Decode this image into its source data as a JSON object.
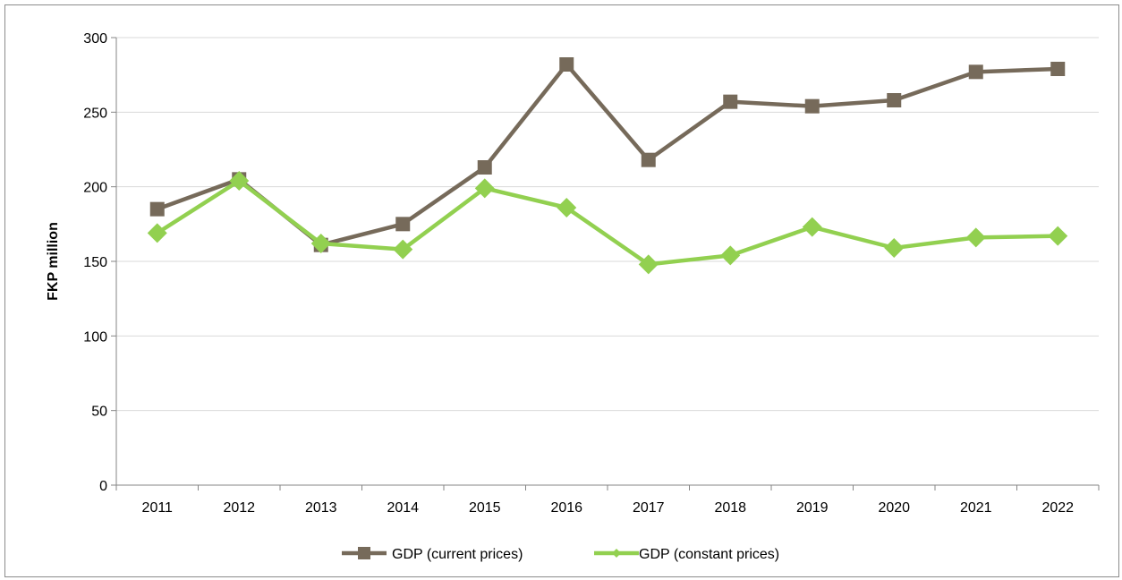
{
  "chart_data": {
    "type": "line",
    "title": "",
    "xlabel": "",
    "ylabel": "FKP million",
    "ylim": [
      0,
      300
    ],
    "yticks": [
      0,
      50,
      100,
      150,
      200,
      250,
      300
    ],
    "grid": true,
    "legend_position": "bottom",
    "categories": [
      "2011",
      "2012",
      "2013",
      "2014",
      "2015",
      "2016",
      "2017",
      "2018",
      "2019",
      "2020",
      "2021",
      "2022"
    ],
    "series": [
      {
        "name": "GDP (current prices)",
        "color": "#766a5a",
        "marker": "square",
        "values": [
          185,
          205,
          161,
          175,
          213,
          282,
          218,
          257,
          254,
          258,
          277,
          279
        ]
      },
      {
        "name": "GDP (constant prices)",
        "color": "#92d050",
        "marker": "diamond",
        "values": [
          169,
          204,
          162,
          158,
          199,
          186,
          148,
          154,
          173,
          159,
          166,
          167
        ]
      }
    ]
  }
}
